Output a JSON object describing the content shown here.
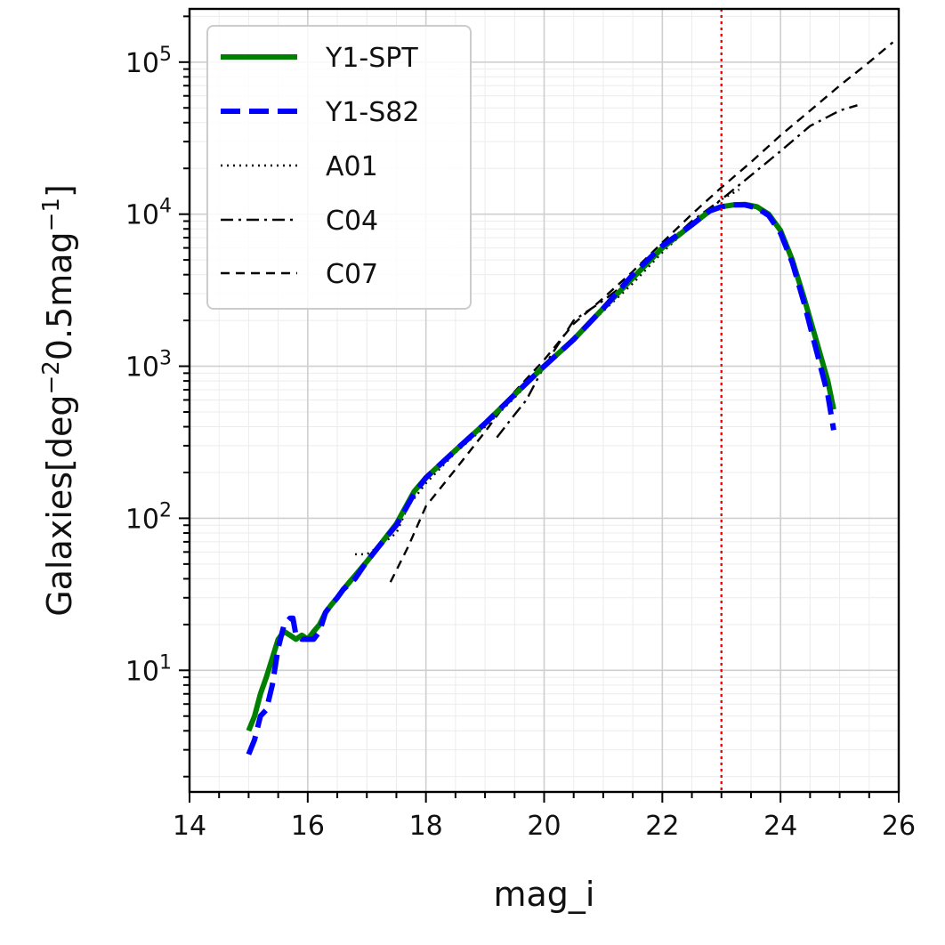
{
  "chart_data": {
    "type": "line",
    "xlabel": "mag_i",
    "ylabel": {
      "prefix": "Galaxies[deg",
      "sup1": "−2",
      "mid": "0.5mag",
      "sup2": "−1",
      "suffix": "]"
    },
    "xlim": [
      14,
      26
    ],
    "ylim_log10": [
      0.2,
      5.35
    ],
    "x_ticks": [
      14,
      16,
      18,
      20,
      22,
      24,
      26
    ],
    "x_tick_labels": [
      "14",
      "16",
      "18",
      "20",
      "22",
      "24",
      "26"
    ],
    "y_ticks": [
      {
        "exp": 1,
        "base": "10",
        "sup": "1"
      },
      {
        "exp": 2,
        "base": "10",
        "sup": "2"
      },
      {
        "exp": 3,
        "base": "10",
        "sup": "3"
      },
      {
        "exp": 4,
        "base": "10",
        "sup": "4"
      },
      {
        "exp": 5,
        "base": "10",
        "sup": "5"
      }
    ],
    "grid": true,
    "legend_position": "top-left",
    "vertical_line": {
      "x": 23.0,
      "color": "#ff0000",
      "style": "dotted"
    },
    "series": [
      {
        "name": "Y1-SPT",
        "color": "#008000",
        "style": "solid",
        "x": [
          15.0,
          15.1,
          15.2,
          15.3,
          15.4,
          15.5,
          15.6,
          15.7,
          15.8,
          15.9,
          16.0,
          16.1,
          16.2,
          16.3,
          16.4,
          16.5,
          16.6,
          16.8,
          17.0,
          17.2,
          17.5,
          17.8,
          18.0,
          18.5,
          19.0,
          19.5,
          20.0,
          20.5,
          21.0,
          21.5,
          22.0,
          22.5,
          22.8,
          23.0,
          23.2,
          23.4,
          23.6,
          23.8,
          24.0,
          24.2,
          24.4,
          24.6,
          24.8,
          24.9
        ],
        "y": [
          4,
          5,
          7,
          9,
          12,
          16,
          18,
          17,
          16,
          17,
          16,
          18,
          20,
          24,
          27,
          30,
          34,
          42,
          52,
          65,
          92,
          150,
          185,
          280,
          420,
          650,
          1000,
          1500,
          2400,
          3800,
          6000,
          8500,
          10500,
          11200,
          11500,
          11600,
          11200,
          10000,
          7800,
          5000,
          2800,
          1500,
          800,
          520
        ]
      },
      {
        "name": "Y1-S82",
        "color": "#0000ff",
        "style": "dashed",
        "x": [
          15.0,
          15.1,
          15.2,
          15.3,
          15.4,
          15.5,
          15.6,
          15.7,
          15.75,
          15.8,
          15.9,
          16.0,
          16.1,
          16.2,
          16.3,
          16.4,
          16.5,
          16.6,
          16.8,
          17.0,
          17.2,
          17.5,
          17.8,
          18.0,
          18.5,
          19.0,
          19.5,
          20.0,
          20.5,
          21.0,
          21.5,
          22.0,
          22.5,
          22.8,
          23.0,
          23.2,
          23.4,
          23.6,
          23.8,
          24.0,
          24.2,
          24.4,
          24.6,
          24.8,
          24.9
        ],
        "y": [
          2.8,
          3.5,
          5,
          5.5,
          8,
          14,
          20,
          22,
          22,
          17,
          16,
          16,
          16,
          18,
          24,
          27,
          30,
          34,
          40,
          52,
          65,
          90,
          145,
          185,
          280,
          420,
          650,
          1000,
          1500,
          2400,
          4000,
          6200,
          8500,
          10500,
          11200,
          11500,
          11500,
          11000,
          9800,
          7500,
          4800,
          2600,
          1300,
          650,
          380
        ]
      },
      {
        "name": "A01",
        "color": "#000000",
        "style": "dotted",
        "x": [
          16.8,
          17.0,
          17.2,
          17.5,
          17.7,
          18.0,
          18.5,
          19.0,
          19.5,
          20.0,
          20.5,
          21.0,
          21.5,
          22.0,
          22.5,
          23.0,
          23.3
        ],
        "y": [
          58,
          58,
          65,
          80,
          120,
          170,
          270,
          400,
          620,
          1000,
          1500,
          2300,
          3500,
          5600,
          8500,
          12500,
          14500
        ]
      },
      {
        "name": "C04",
        "color": "#000000",
        "style": "dashdot",
        "x": [
          19.2,
          19.5,
          19.7,
          20.0,
          20.5,
          21.0,
          21.5,
          22.0,
          22.5,
          23.0,
          23.5,
          24.0,
          24.5,
          25.0,
          25.3
        ],
        "y": [
          340,
          480,
          600,
          1000,
          2000,
          2700,
          3800,
          6000,
          9000,
          12500,
          18000,
          26000,
          38000,
          48000,
          52000
        ]
      },
      {
        "name": "C07",
        "color": "#000000",
        "style": "dashed",
        "x": [
          17.4,
          17.7,
          18.0,
          18.5,
          19.0,
          19.5,
          20.0,
          20.5,
          21.0,
          21.5,
          22.0,
          22.5,
          23.0,
          23.5,
          24.0,
          24.5,
          25.0,
          25.5,
          25.9
        ],
        "y": [
          38,
          65,
          120,
          210,
          370,
          680,
          1100,
          1900,
          2800,
          4200,
          6500,
          10000,
          15000,
          22000,
          33000,
          48000,
          70000,
          100000,
          135000
        ]
      }
    ]
  }
}
